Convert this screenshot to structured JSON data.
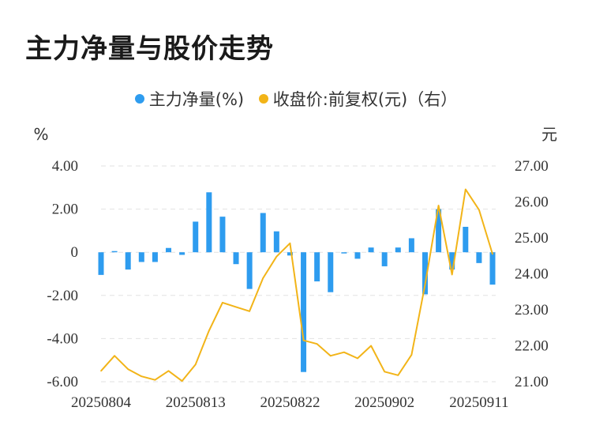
{
  "title": "主力净量与股价走势",
  "colors": {
    "bar": "#2e9cef",
    "line": "#f2b418",
    "grid": "#e2e2e2"
  },
  "chart_data": {
    "type": "bar+line",
    "legend": [
      {
        "name": "主力净量(%)",
        "color": "#2e9cef"
      },
      {
        "name": "收盘价:前复权(元)（右）",
        "color": "#f2b418"
      }
    ],
    "left_unit": "%",
    "right_unit": "元",
    "left_ylim": [
      -6,
      4
    ],
    "right_ylim": [
      21,
      27
    ],
    "left_ticks": [
      "4.00",
      "2.00",
      "0",
      "-2.00",
      "-4.00",
      "-6.00"
    ],
    "right_ticks": [
      "27.00",
      "26.00",
      "25.00",
      "24.00",
      "23.00",
      "22.00",
      "21.00"
    ],
    "x_ticks": [
      {
        "index": 0,
        "label": "20250804"
      },
      {
        "index": 7,
        "label": "20250813"
      },
      {
        "index": 14,
        "label": "20250822"
      },
      {
        "index": 21,
        "label": "20250902"
      },
      {
        "index": 28,
        "label": "20250911"
      }
    ],
    "series": [
      {
        "name": "主力净量(%)",
        "type": "bar",
        "values": [
          -1.05,
          0.03,
          -0.8,
          -0.45,
          -0.45,
          0.2,
          -0.12,
          1.42,
          2.78,
          1.65,
          -0.55,
          -1.7,
          1.82,
          0.97,
          -0.15,
          -5.55,
          -1.35,
          -1.85,
          -0.05,
          -0.3,
          0.22,
          -0.65,
          0.22,
          0.65,
          -1.95,
          2.0,
          -0.8,
          1.18,
          -0.5,
          -1.5
        ]
      },
      {
        "name": "收盘价:前复权(元)（右）",
        "type": "line",
        "values": [
          21.3,
          21.72,
          21.35,
          21.15,
          21.05,
          21.3,
          21.02,
          21.48,
          22.42,
          23.2,
          23.08,
          22.96,
          23.88,
          24.48,
          24.85,
          22.15,
          22.05,
          21.72,
          21.82,
          21.65,
          22.0,
          21.28,
          21.18,
          21.75,
          23.7,
          25.9,
          23.98,
          26.35,
          25.78,
          24.55
        ]
      }
    ]
  }
}
